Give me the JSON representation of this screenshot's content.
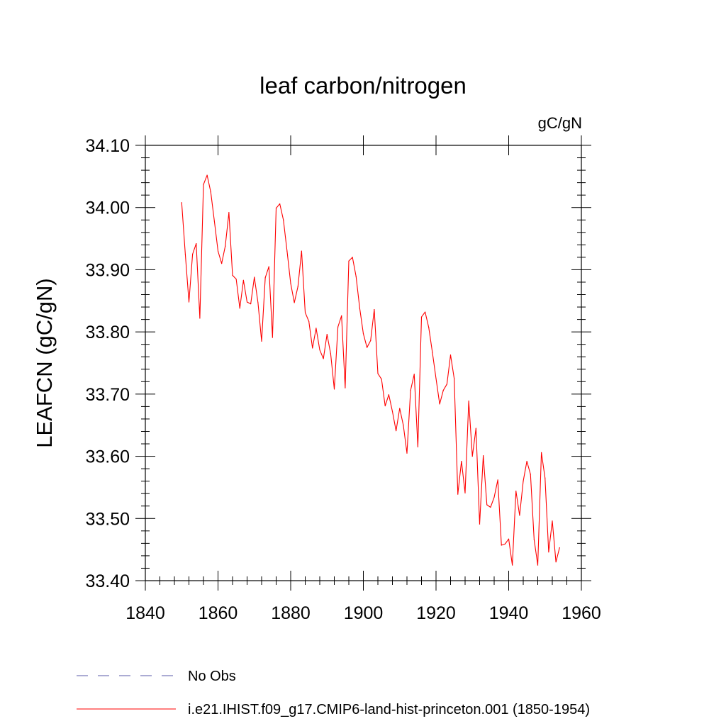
{
  "chart_data": {
    "type": "line",
    "title": "leaf carbon/nitrogen",
    "units_label": "gC/gN",
    "ylabel": "LEAFCN  (gC/gN)",
    "xlabel": "",
    "xlim": [
      1840,
      1960
    ],
    "ylim": [
      33.4,
      34.1
    ],
    "x_ticks": [
      1840,
      1860,
      1880,
      1900,
      1920,
      1940,
      1960
    ],
    "x_tick_labels": [
      "1840",
      "1860",
      "1880",
      "1900",
      "1920",
      "1940",
      "1960"
    ],
    "y_ticks": [
      33.4,
      33.5,
      33.6,
      33.7,
      33.8,
      33.9,
      34.0,
      34.1
    ],
    "y_tick_labels": [
      "33.40",
      "33.50",
      "33.60",
      "33.70",
      "33.80",
      "33.90",
      "34.00",
      "34.10"
    ],
    "grid": false,
    "legend_position": "bottom",
    "series": [
      {
        "name": "i.e21.IHIST.f09_g17.CMIP6-land-hist-princeton.001 (1850-1954)",
        "color": "#ff0000",
        "style": "solid",
        "x": [
          1850,
          1851,
          1852,
          1853,
          1854,
          1855,
          1856,
          1857,
          1858,
          1859,
          1860,
          1861,
          1862,
          1863,
          1864,
          1865,
          1866,
          1867,
          1868,
          1869,
          1870,
          1871,
          1872,
          1873,
          1874,
          1875,
          1876,
          1877,
          1878,
          1879,
          1880,
          1881,
          1882,
          1883,
          1884,
          1885,
          1886,
          1887,
          1888,
          1889,
          1890,
          1891,
          1892,
          1893,
          1894,
          1895,
          1896,
          1897,
          1898,
          1899,
          1900,
          1901,
          1902,
          1903,
          1904,
          1905,
          1906,
          1907,
          1908,
          1909,
          1910,
          1911,
          1912,
          1913,
          1914,
          1915,
          1916,
          1917,
          1918,
          1919,
          1920,
          1921,
          1922,
          1923,
          1924,
          1925,
          1926,
          1927,
          1928,
          1929,
          1930,
          1931,
          1932,
          1933,
          1934,
          1935,
          1936,
          1937,
          1938,
          1939,
          1940,
          1941,
          1942,
          1943,
          1944,
          1945,
          1946,
          1947,
          1948,
          1949,
          1950,
          1951,
          1952,
          1953,
          1954
        ],
        "values": [
          34.008,
          33.925,
          33.848,
          33.925,
          33.942,
          33.822,
          34.037,
          34.052,
          34.025,
          33.978,
          33.93,
          33.91,
          33.938,
          33.992,
          33.891,
          33.885,
          33.838,
          33.883,
          33.848,
          33.845,
          33.888,
          33.847,
          33.785,
          33.887,
          33.905,
          33.791,
          33.999,
          34.006,
          33.98,
          33.93,
          33.878,
          33.847,
          33.873,
          33.93,
          33.831,
          33.817,
          33.774,
          33.806,
          33.771,
          33.757,
          33.796,
          33.765,
          33.708,
          33.808,
          33.826,
          33.71,
          33.914,
          33.92,
          33.889,
          33.838,
          33.797,
          33.775,
          33.786,
          33.836,
          33.733,
          33.724,
          33.681,
          33.699,
          33.672,
          33.641,
          33.677,
          33.65,
          33.605,
          33.706,
          33.732,
          33.615,
          33.824,
          33.832,
          33.807,
          33.767,
          33.725,
          33.684,
          33.706,
          33.716,
          33.763,
          33.725,
          33.539,
          33.592,
          33.541,
          33.689,
          33.6,
          33.645,
          33.491,
          33.601,
          33.522,
          33.518,
          33.534,
          33.562,
          33.457,
          33.459,
          33.467,
          33.425,
          33.544,
          33.505,
          33.56,
          33.592,
          33.571,
          33.466,
          33.425,
          33.606,
          33.565,
          33.446,
          33.496,
          33.43,
          33.453
        ]
      }
    ],
    "reference_lines": [
      {
        "name": "No Obs",
        "color": "#5a5aa8",
        "style": "dashed"
      }
    ]
  }
}
